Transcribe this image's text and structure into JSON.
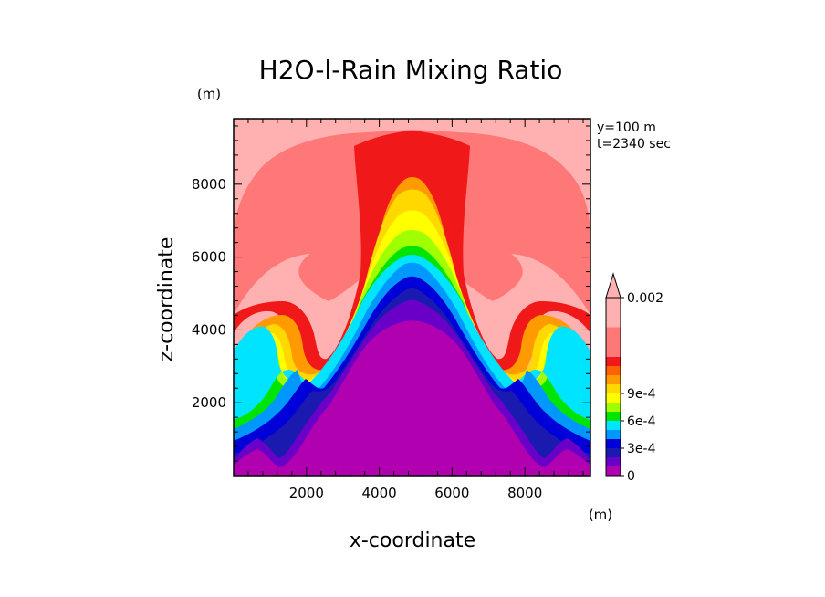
{
  "chart_data": {
    "type": "contour",
    "title": "H2O-l-Rain Mixing Ratio",
    "xlabel": "x-coordinate",
    "ylabel": "z-coordinate",
    "x_unit": "(m)",
    "y_unit": "(m)",
    "info_lines": [
      "y=100 m",
      "t=2340 sec"
    ],
    "xlim": [
      0,
      9800
    ],
    "ylim": [
      0,
      9800
    ],
    "x_ticks": [
      2000,
      4000,
      6000,
      8000
    ],
    "y_ticks": [
      2000,
      4000,
      6000,
      8000
    ],
    "x_tick_labels": [
      "2000",
      "4000",
      "6000",
      "8000"
    ],
    "y_tick_labels": [
      "2000",
      "4000",
      "6000",
      "8000"
    ],
    "colorbar": {
      "levels": [
        "0",
        "1e-4",
        "2e-4",
        "3e-4",
        "4e-4",
        "5e-4",
        "6e-4",
        "7e-4",
        "8e-4",
        "9e-4",
        "0.001",
        "0.002"
      ],
      "labels": [
        "0",
        "3e-4",
        "6e-4",
        "9e-4",
        "0.002"
      ],
      "colors": [
        "#b000b0",
        "#6a00c8",
        "#1a1ab0",
        "#0000d8",
        "#0098ff",
        "#00e4ff",
        "#00e400",
        "#a0ff00",
        "#ffff00",
        "#ffd800",
        "#ff9a00",
        "#ff6000",
        "#f01818",
        "#ff7878",
        "#ffb0b0"
      ],
      "extend": "max"
    },
    "fields": [
      {
        "level": "above 0.002",
        "color": "#ffb0b0",
        "region": "background"
      },
      {
        "level": "0.001-0.002",
        "color": "#ff7878",
        "region": "outer lobes"
      },
      {
        "level": "~0.001",
        "color": "#f01818",
        "region": "central column"
      },
      {
        "level": "9e-4",
        "color": "#ff9a00"
      },
      {
        "level": "8e-4",
        "color": "#ffd800"
      },
      {
        "level": "7e-4",
        "color": "#ffff00"
      },
      {
        "level": "6e-4",
        "color": "#a0ff00"
      },
      {
        "level": "5e-4",
        "color": "#00e400"
      },
      {
        "level": "4e-4",
        "color": "#00e4ff"
      },
      {
        "level": "3e-4",
        "color": "#0098ff"
      },
      {
        "level": "2e-4",
        "color": "#0000d8"
      },
      {
        "level": "1e-4",
        "color": "#1a1ab0"
      },
      {
        "level": "0",
        "color": "#b000b0",
        "region": "central dome"
      }
    ]
  }
}
